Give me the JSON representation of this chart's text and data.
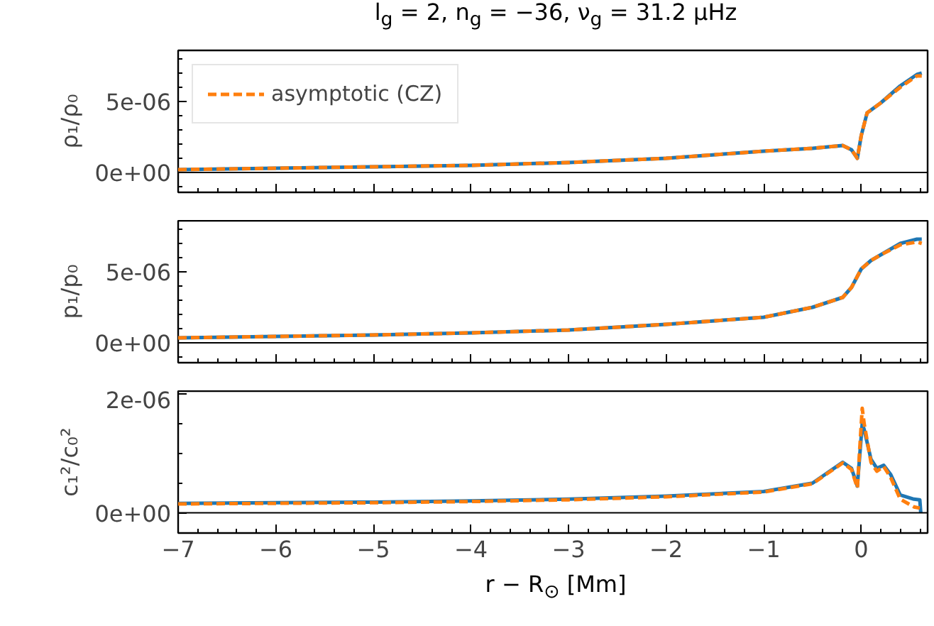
{
  "chart_data": [
    {
      "type": "line",
      "title": "l$_{g}$ = 2, n$_{g}$ = −36, ν$_{g}$ = 31.2 μHz",
      "ylabel": "ρ₁/ρ₀",
      "xlim": [
        -7,
        0.68
      ],
      "xticks": [
        -7,
        -6,
        -5,
        -4,
        -3,
        -2,
        -1,
        0
      ],
      "ylim": [
        -1.4e-06,
        8.6e-06
      ],
      "yticks": [
        {
          "value": -1e-06,
          "label": null
        },
        {
          "value": 0,
          "label": "0e+00"
        },
        {
          "value": 1e-06,
          "label": null
        },
        {
          "value": 2e-06,
          "label": null
        },
        {
          "value": 3e-06,
          "label": null
        },
        {
          "value": 4e-06,
          "label": null
        },
        {
          "value": 5e-06,
          "label": "5e-06"
        },
        {
          "value": 6e-06,
          "label": null
        },
        {
          "value": 7e-06,
          "label": null
        },
        {
          "value": 8e-06,
          "label": null
        }
      ],
      "tick_labels": "y",
      "legend": "top left",
      "grid": false,
      "ref_lines": [
        {
          "axis": "y",
          "value": 0,
          "color": "#000000"
        }
      ],
      "series": [
        {
          "color": "#1f77b4",
          "line_style": "solid",
          "x": [
            -7,
            -6,
            -5,
            -4,
            -3,
            -2,
            -1,
            -0.5,
            -0.19,
            -0.1,
            -0.04,
            0.0,
            0.06,
            0.2,
            0.4,
            0.57,
            0.62
          ],
          "values": [
            2e-07,
            3e-07,
            4e-07,
            5e-07,
            7e-07,
            1e-06,
            1.5e-06,
            1.7e-06,
            1.9e-06,
            1.6e-06,
            1e-06,
            2.6e-06,
            4.2e-06,
            4.9e-06,
            6.1e-06,
            6.9e-06,
            7e-06
          ]
        },
        {
          "name": "asymptotic (CZ)",
          "color": "#ff7f0e",
          "line_style": "dashed",
          "x": [
            -7,
            -6,
            -5,
            -4,
            -3,
            -2,
            -1,
            -0.5,
            -0.19,
            -0.1,
            -0.04,
            0.0,
            0.06,
            0.2,
            0.4,
            0.57,
            0.62
          ],
          "values": [
            2e-07,
            3e-07,
            4e-07,
            5e-07,
            7e-07,
            1e-06,
            1.5e-06,
            1.7e-06,
            1.9e-06,
            1.6e-06,
            1e-06,
            2.6e-06,
            4.2e-06,
            4.9e-06,
            6e-06,
            6.8e-06,
            6.8e-06
          ]
        }
      ]
    },
    {
      "type": "line",
      "ylabel": "p₁/p₀",
      "xlim": [
        -7,
        0.68
      ],
      "xticks": [
        -7,
        -6,
        -5,
        -4,
        -3,
        -2,
        -1,
        0
      ],
      "ylim": [
        -1.4e-06,
        8.6e-06
      ],
      "yticks": [
        {
          "value": -1e-06,
          "label": null
        },
        {
          "value": 0,
          "label": "0e+00"
        },
        {
          "value": 1e-06,
          "label": null
        },
        {
          "value": 2e-06,
          "label": null
        },
        {
          "value": 3e-06,
          "label": null
        },
        {
          "value": 4e-06,
          "label": null
        },
        {
          "value": 5e-06,
          "label": "5e-06"
        },
        {
          "value": 6e-06,
          "label": null
        },
        {
          "value": 7e-06,
          "label": null
        },
        {
          "value": 8e-06,
          "label": null
        }
      ],
      "tick_labels": "y",
      "grid": false,
      "ref_lines": [
        {
          "axis": "y",
          "value": 0,
          "color": "#000000"
        }
      ],
      "series": [
        {
          "color": "#1f77b4",
          "line_style": "solid",
          "x": [
            -7,
            -6,
            -5,
            -4,
            -3,
            -2,
            -1,
            -0.5,
            -0.19,
            -0.1,
            0.0,
            0.1,
            0.2,
            0.4,
            0.57,
            0.62
          ],
          "values": [
            3.5e-07,
            4.5e-07,
            5.5e-07,
            7e-07,
            9e-07,
            1.3e-06,
            1.8e-06,
            2.5e-06,
            3.2e-06,
            3.9e-06,
            5.2e-06,
            5.8e-06,
            6.2e-06,
            7e-06,
            7.3e-06,
            7.3e-06
          ]
        },
        {
          "color": "#ff7f0e",
          "line_style": "dashed",
          "x": [
            -7,
            -6,
            -5,
            -4,
            -3,
            -2,
            -1,
            -0.5,
            -0.19,
            -0.1,
            0.0,
            0.1,
            0.2,
            0.4,
            0.57,
            0.62
          ],
          "values": [
            3.5e-07,
            4.5e-07,
            5.5e-07,
            7e-07,
            9e-07,
            1.3e-06,
            1.8e-06,
            2.5e-06,
            3.2e-06,
            3.9e-06,
            5.2e-06,
            5.8e-06,
            6.2e-06,
            6.9e-06,
            7.1e-06,
            7e-06
          ]
        }
      ]
    },
    {
      "type": "line",
      "ylabel": "c₁²/c₀²",
      "xlabel": "r − R$_{⊙}$ [Mm]",
      "xlim": [
        -7,
        0.68
      ],
      "xticks": [
        {
          "value": -7,
          "label": "−7"
        },
        {
          "value": -6,
          "label": "−6"
        },
        {
          "value": -5,
          "label": "−5"
        },
        {
          "value": -4,
          "label": "−4"
        },
        {
          "value": -3,
          "label": "−3"
        },
        {
          "value": -2,
          "label": "−2"
        },
        {
          "value": -1,
          "label": "−1"
        },
        0
      ],
      "ylim": [
        -3.4e-07,
        2.05e-06
      ],
      "yticks": [
        {
          "value": 0,
          "label": "0e+00"
        },
        {
          "value": 5e-07,
          "label": null
        },
        {
          "value": 1e-06,
          "label": null
        },
        {
          "value": 1.5e-06,
          "label": null
        },
        {
          "value": 2e-06,
          "label": "2e-06"
        }
      ],
      "grid": false,
      "ref_lines": [
        {
          "axis": "y",
          "value": 0,
          "color": "#000000"
        }
      ],
      "series": [
        {
          "color": "#1f77b4",
          "line_style": "solid",
          "x": [
            -7,
            -6,
            -5,
            -4,
            -3,
            -2,
            -1,
            -0.5,
            -0.19,
            -0.1,
            -0.04,
            0.01,
            0.03,
            0.1,
            0.16,
            0.23,
            0.3,
            0.4,
            0.54,
            0.6,
            0.61
          ],
          "values": [
            1.6e-07,
            1.7e-07,
            1.8e-07,
            2e-07,
            2.3e-07,
            2.8e-07,
            3.6e-07,
            5e-07,
            8.5e-07,
            7.5e-07,
            4.5e-07,
            1.5e-06,
            1.4e-06,
            9e-07,
            7.5e-07,
            8e-07,
            6.5e-07,
            3e-07,
            2.3e-07,
            2.2e-07,
            0
          ]
        },
        {
          "color": "#ff7f0e",
          "line_style": "dashed",
          "x": [
            -7,
            -6,
            -5,
            -4,
            -3,
            -2,
            -1,
            -0.5,
            -0.19,
            -0.1,
            -0.04,
            0.01,
            0.03,
            0.1,
            0.16,
            0.23,
            0.3,
            0.4,
            0.54,
            0.6
          ],
          "values": [
            1.5e-07,
            1.6e-07,
            1.7e-07,
            1.9e-07,
            2.2e-07,
            2.7e-07,
            3.5e-07,
            4.9e-07,
            8.4e-07,
            7.3e-07,
            4.2e-07,
            1.76e-06,
            1.5e-06,
            8.5e-07,
            7e-07,
            7.8e-07,
            6e-07,
            2.3e-07,
            1e-07,
            8e-08
          ]
        }
      ]
    }
  ]
}
